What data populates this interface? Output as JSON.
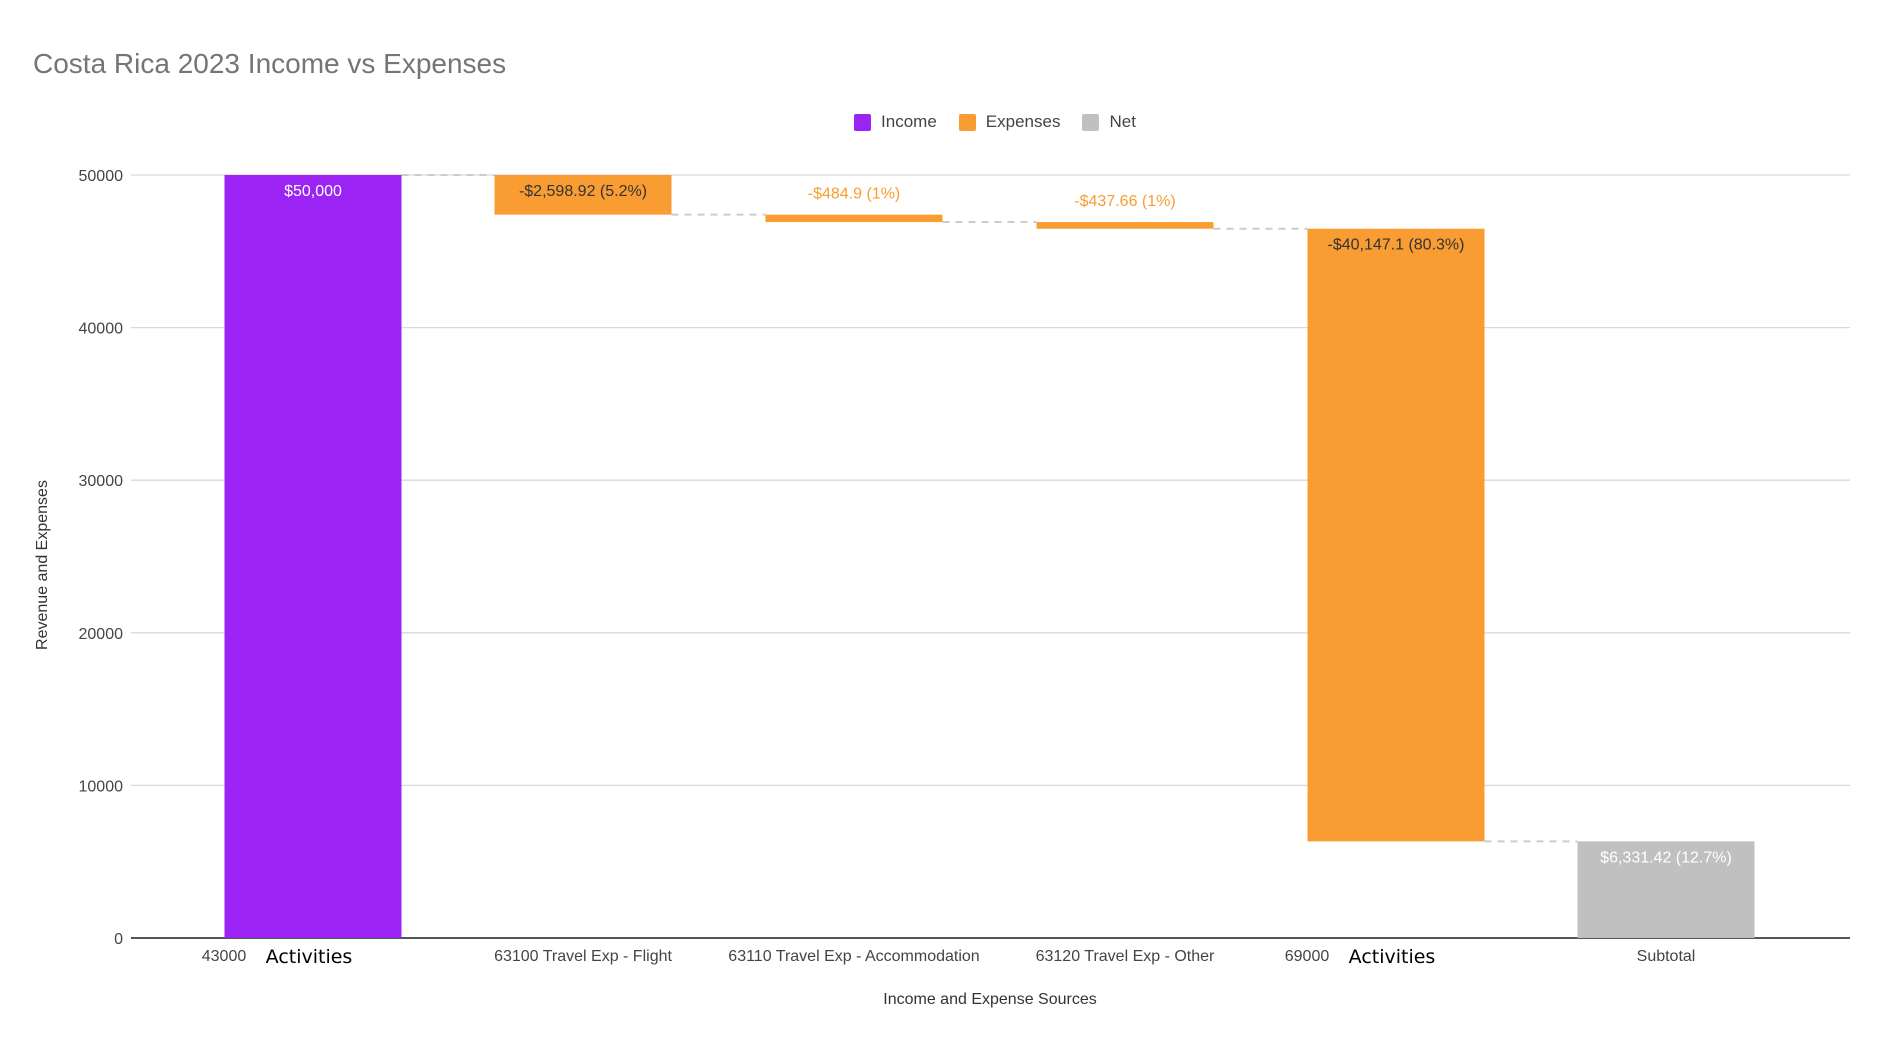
{
  "chart_data": {
    "type": "waterfall",
    "title": "Costa Rica 2023 Income vs Expenses",
    "xlabel": "Income and Expense Sources",
    "ylabel": "Revenue and Expenses",
    "ylim": [
      0,
      50000
    ],
    "yticks": [
      "0",
      "10000",
      "20000",
      "30000",
      "40000",
      "50000"
    ],
    "grid": true,
    "legend_position": "top",
    "legend": [
      {
        "name": "Income",
        "color": "#9b24f5"
      },
      {
        "name": "Expenses",
        "color": "#f99d33"
      },
      {
        "name": "Net",
        "color": "#c0c0c0"
      }
    ],
    "categories": [
      {
        "code": "43000",
        "name": "Activities"
      },
      {
        "code": "",
        "name": "63100 Travel Exp - Flight"
      },
      {
        "code": "",
        "name": "63110 Travel Exp - Accommodation"
      },
      {
        "code": "",
        "name": "63120 Travel Exp - Other"
      },
      {
        "code": "69000",
        "name": "Activities"
      },
      {
        "code": "",
        "name": "Subtotal"
      }
    ],
    "values": [
      50000,
      -2598.92,
      -484.9,
      -437.66,
      -40147.1,
      6331.42
    ],
    "kinds": [
      "Income",
      "Expenses",
      "Expenses",
      "Expenses",
      "Expenses",
      "Net"
    ],
    "data_labels": [
      "$50,000",
      "-$2,598.92 (5.2%)",
      "-$484.9 (1%)",
      "-$437.66 (1%)",
      "-$40,147.1 (80.3%)",
      "$6,331.42 (12.7%)"
    ]
  }
}
